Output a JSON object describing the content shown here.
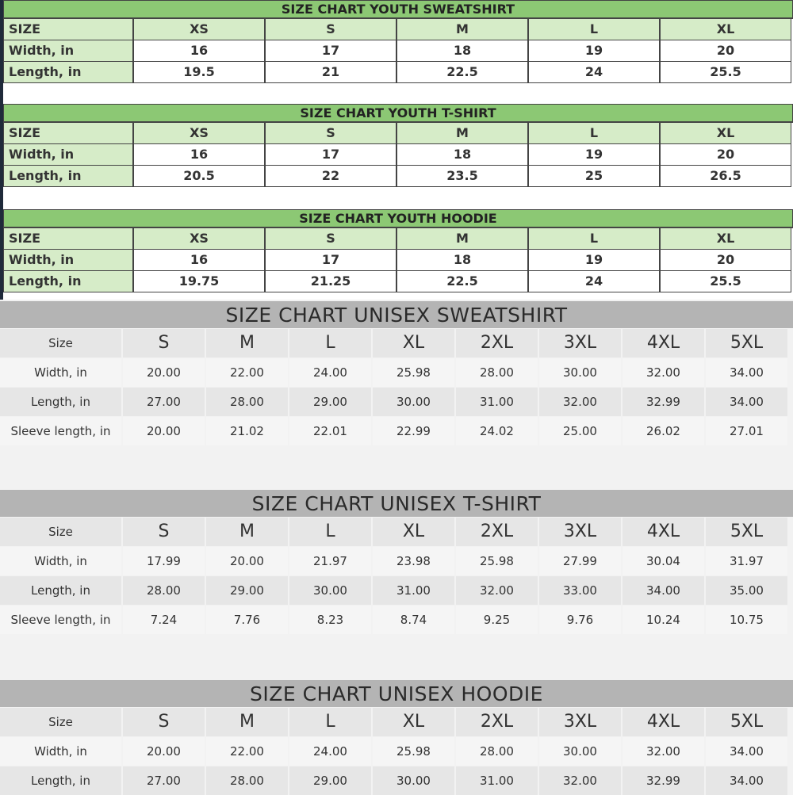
{
  "youth_charts": [
    {
      "title": "SIZE CHART YOUTH SWEATSHIRT",
      "sizes": [
        "SIZE",
        "XS",
        "S",
        "M",
        "L",
        "XL"
      ],
      "rows": [
        {
          "label": "Width, in",
          "values": [
            "16",
            "17",
            "18",
            "19",
            "20"
          ]
        },
        {
          "label": "Length, in",
          "values": [
            "19.5",
            "21",
            "22.5",
            "24",
            "25.5"
          ]
        }
      ]
    },
    {
      "title": "SIZE CHART YOUTH T-SHIRT",
      "sizes": [
        "SIZE",
        "XS",
        "S",
        "M",
        "L",
        "XL"
      ],
      "rows": [
        {
          "label": "Width, in",
          "values": [
            "16",
            "17",
            "18",
            "19",
            "20"
          ]
        },
        {
          "label": "Length, in",
          "values": [
            "20.5",
            "22",
            "23.5",
            "25",
            "26.5"
          ]
        }
      ]
    },
    {
      "title": "SIZE CHART YOUTH HOODIE",
      "sizes": [
        "SIZE",
        "XS",
        "S",
        "M",
        "L",
        "XL"
      ],
      "rows": [
        {
          "label": "Width, in",
          "values": [
            "16",
            "17",
            "18",
            "19",
            "20"
          ]
        },
        {
          "label": "Length, in",
          "values": [
            "19.75",
            "21.25",
            "22.5",
            "24",
            "25.5"
          ]
        }
      ]
    }
  ],
  "unisex_charts": [
    {
      "title": "SIZE CHART UNISEX SWEATSHIRT",
      "sizes": [
        "Size",
        "S",
        "M",
        "L",
        "XL",
        "2XL",
        "3XL",
        "4XL",
        "5XL"
      ],
      "rows": [
        {
          "label": "Width, in",
          "values": [
            "20.00",
            "22.00",
            "24.00",
            "25.98",
            "28.00",
            "30.00",
            "32.00",
            "34.00"
          ]
        },
        {
          "label": "Length, in",
          "values": [
            "27.00",
            "28.00",
            "29.00",
            "30.00",
            "31.00",
            "32.00",
            "32.99",
            "34.00"
          ]
        },
        {
          "label": "Sleeve length, in",
          "values": [
            "20.00",
            "21.02",
            "22.01",
            "22.99",
            "24.02",
            "25.00",
            "26.02",
            "27.01"
          ]
        }
      ]
    },
    {
      "title": "SIZE CHART UNISEX T-SHIRT",
      "sizes": [
        "Size",
        "S",
        "M",
        "L",
        "XL",
        "2XL",
        "3XL",
        "4XL",
        "5XL"
      ],
      "rows": [
        {
          "label": "Width, in",
          "values": [
            "17.99",
            "20.00",
            "21.97",
            "23.98",
            "25.98",
            "27.99",
            "30.04",
            "31.97"
          ]
        },
        {
          "label": "Length, in",
          "values": [
            "28.00",
            "29.00",
            "30.00",
            "31.00",
            "32.00",
            "33.00",
            "34.00",
            "35.00"
          ]
        },
        {
          "label": "Sleeve length, in",
          "values": [
            "7.24",
            "7.76",
            "8.23",
            "8.74",
            "9.25",
            "9.76",
            "10.24",
            "10.75"
          ]
        }
      ]
    },
    {
      "title": "SIZE CHART UNISEX HOODIE",
      "sizes": [
        "Size",
        "S",
        "M",
        "L",
        "XL",
        "2XL",
        "3XL",
        "4XL",
        "5XL"
      ],
      "rows": [
        {
          "label": "Width, in",
          "values": [
            "20.00",
            "22.00",
            "24.00",
            "25.98",
            "28.00",
            "30.00",
            "32.00",
            "34.00"
          ]
        },
        {
          "label": "Length, in",
          "values": [
            "27.00",
            "28.00",
            "29.00",
            "30.00",
            "31.00",
            "32.00",
            "32.99",
            "34.00"
          ]
        }
      ]
    }
  ],
  "colors": {
    "youth_title": "#8cc874",
    "youth_label": "#d6ecc8",
    "unisex_title": "#b4b4b4",
    "unisex_row_alt": "#e6e6e6"
  }
}
